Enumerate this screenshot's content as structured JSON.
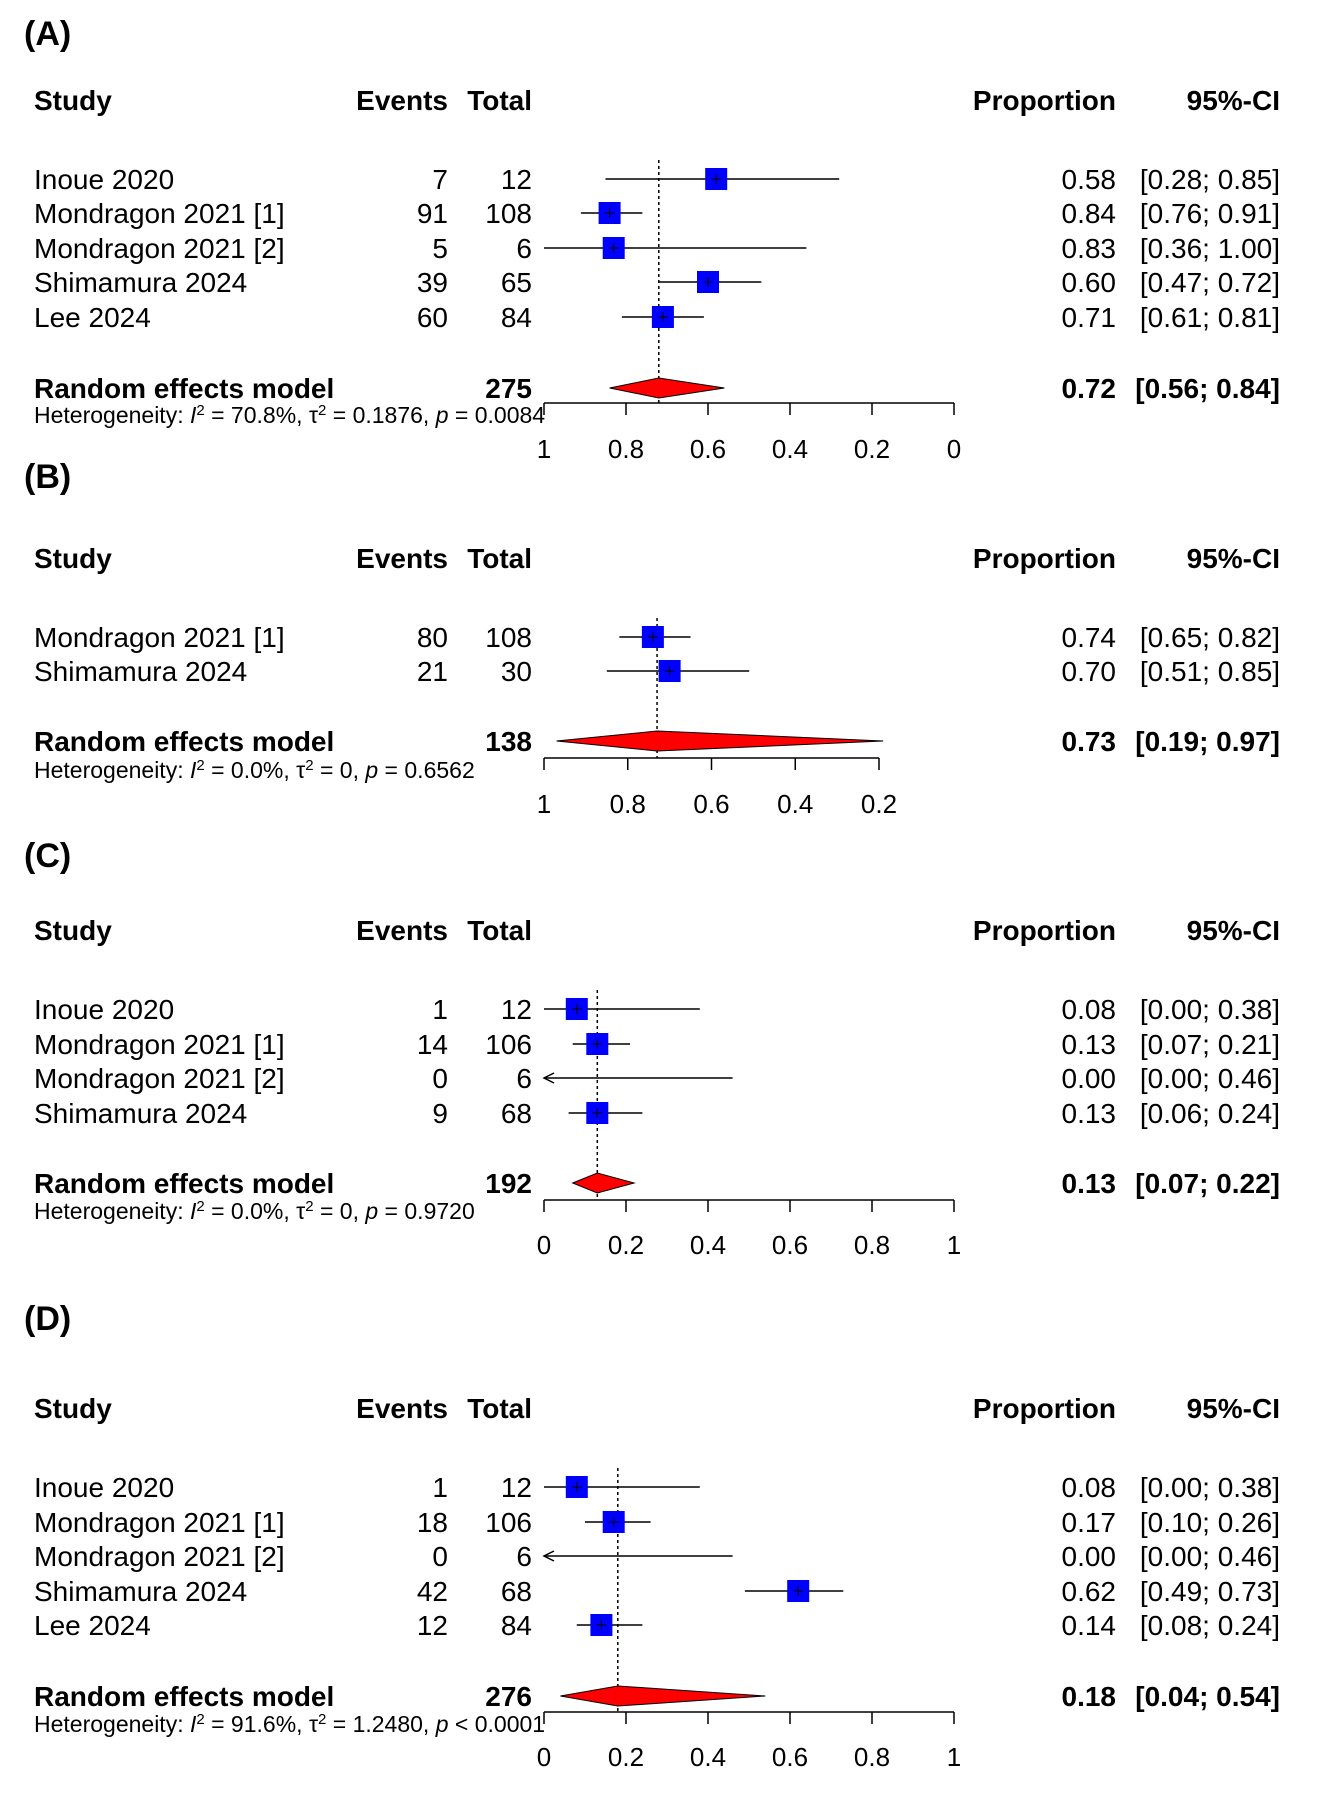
{
  "chart_data": [
    {
      "type": "forest",
      "panel_label": "(A)",
      "axis": {
        "from": 1,
        "to": 0,
        "ticks": [
          "1",
          "0.8",
          "0.6",
          "0.4",
          "0.2",
          "0"
        ]
      },
      "headers": {
        "study": "Study",
        "events": "Events",
        "total": "Total",
        "proportion": "Proportion",
        "ci": "95%-CI"
      },
      "studies": [
        {
          "study": "Inoue 2020",
          "events": "7",
          "total": "12",
          "proportion": "0.58",
          "ci": "[0.28; 0.85]",
          "p": 0.58,
          "lo": 0.28,
          "hi": 0.85
        },
        {
          "study": "Mondragon 2021 [1]",
          "events": "91",
          "total": "108",
          "proportion": "0.84",
          "ci": "[0.76; 0.91]",
          "p": 0.84,
          "lo": 0.76,
          "hi": 0.91
        },
        {
          "study": "Mondragon 2021 [2]",
          "events": "5",
          "total": "6",
          "proportion": "0.83",
          "ci": "[0.36; 1.00]",
          "p": 0.83,
          "lo": 0.36,
          "hi": 1.0
        },
        {
          "study": "Shimamura 2024",
          "events": "39",
          "total": "65",
          "proportion": "0.60",
          "ci": "[0.47; 0.72]",
          "p": 0.6,
          "lo": 0.47,
          "hi": 0.72
        },
        {
          "study": "Lee 2024",
          "events": "60",
          "total": "84",
          "proportion": "0.71",
          "ci": "[0.61; 0.81]",
          "p": 0.71,
          "lo": 0.61,
          "hi": 0.81
        }
      ],
      "pooled": {
        "label": "Random effects model",
        "total": "275",
        "proportion": "0.72",
        "ci": "[0.56; 0.84]",
        "p": 0.72,
        "lo": 0.56,
        "hi": 0.84
      },
      "heterogeneity": {
        "prefix": "Heterogeneity: ",
        "i2": "70.8%",
        "tau2": "0.1876",
        "p_op": "=",
        "p": "0.0084"
      }
    },
    {
      "type": "forest",
      "panel_label": "(B)",
      "axis": {
        "from": 1,
        "to": 0.2,
        "ticks": [
          "1",
          "0.8",
          "0.6",
          "0.4",
          "0.2"
        ]
      },
      "headers": {
        "study": "Study",
        "events": "Events",
        "total": "Total",
        "proportion": "Proportion",
        "ci": "95%-CI"
      },
      "studies": [
        {
          "study": "Mondragon 2021 [1]",
          "events": "80",
          "total": "108",
          "proportion": "0.74",
          "ci": "[0.65; 0.82]",
          "p": 0.74,
          "lo": 0.65,
          "hi": 0.82
        },
        {
          "study": "Shimamura 2024",
          "events": "21",
          "total": "30",
          "proportion": "0.70",
          "ci": "[0.51; 0.85]",
          "p": 0.7,
          "lo": 0.51,
          "hi": 0.85
        }
      ],
      "pooled": {
        "label": "Random effects model",
        "total": "138",
        "proportion": "0.73",
        "ci": "[0.19; 0.97]",
        "p": 0.73,
        "lo": 0.19,
        "hi": 0.97
      },
      "heterogeneity": {
        "prefix": "Heterogeneity: ",
        "i2": "0.0%",
        "tau2": "0",
        "p_op": "=",
        "p": "0.6562"
      }
    },
    {
      "type": "forest",
      "panel_label": "(C)",
      "axis": {
        "from": 0,
        "to": 1,
        "ticks": [
          "0",
          "0.2",
          "0.4",
          "0.6",
          "0.8",
          "1"
        ]
      },
      "headers": {
        "study": "Study",
        "events": "Events",
        "total": "Total",
        "proportion": "Proportion",
        "ci": "95%-CI"
      },
      "studies": [
        {
          "study": "Inoue 2020",
          "events": "1",
          "total": "12",
          "proportion": "0.08",
          "ci": "[0.00; 0.38]",
          "p": 0.08,
          "lo": 0.0,
          "hi": 0.38
        },
        {
          "study": "Mondragon 2021 [1]",
          "events": "14",
          "total": "106",
          "proportion": "0.13",
          "ci": "[0.07; 0.21]",
          "p": 0.13,
          "lo": 0.07,
          "hi": 0.21
        },
        {
          "study": "Mondragon 2021 [2]",
          "events": "0",
          "total": "6",
          "proportion": "0.00",
          "ci": "[0.00; 0.46]",
          "p": 0.0,
          "lo": 0.0,
          "hi": 0.46,
          "arrow": true
        },
        {
          "study": "Shimamura 2024",
          "events": "9",
          "total": "68",
          "proportion": "0.13",
          "ci": "[0.06; 0.24]",
          "p": 0.13,
          "lo": 0.06,
          "hi": 0.24
        }
      ],
      "pooled": {
        "label": "Random effects model",
        "total": "192",
        "proportion": "0.13",
        "ci": "[0.07; 0.22]",
        "p": 0.13,
        "lo": 0.07,
        "hi": 0.22
      },
      "heterogeneity": {
        "prefix": "Heterogeneity: ",
        "i2": "0.0%",
        "tau2": "0",
        "p_op": "=",
        "p": "0.9720"
      }
    },
    {
      "type": "forest",
      "panel_label": "(D)",
      "axis": {
        "from": 0,
        "to": 1,
        "ticks": [
          "0",
          "0.2",
          "0.4",
          "0.6",
          "0.8",
          "1"
        ]
      },
      "headers": {
        "study": "Study",
        "events": "Events",
        "total": "Total",
        "proportion": "Proportion",
        "ci": "95%-CI"
      },
      "studies": [
        {
          "study": "Inoue 2020",
          "events": "1",
          "total": "12",
          "proportion": "0.08",
          "ci": "[0.00; 0.38]",
          "p": 0.08,
          "lo": 0.0,
          "hi": 0.38
        },
        {
          "study": "Mondragon 2021 [1]",
          "events": "18",
          "total": "106",
          "proportion": "0.17",
          "ci": "[0.10; 0.26]",
          "p": 0.17,
          "lo": 0.1,
          "hi": 0.26
        },
        {
          "study": "Mondragon 2021 [2]",
          "events": "0",
          "total": "6",
          "proportion": "0.00",
          "ci": "[0.00; 0.46]",
          "p": 0.0,
          "lo": 0.0,
          "hi": 0.46,
          "arrow": true
        },
        {
          "study": "Shimamura 2024",
          "events": "42",
          "total": "68",
          "proportion": "0.62",
          "ci": "[0.49; 0.73]",
          "p": 0.62,
          "lo": 0.49,
          "hi": 0.73
        },
        {
          "study": "Lee 2024",
          "events": "12",
          "total": "84",
          "proportion": "0.14",
          "ci": "[0.08; 0.24]",
          "p": 0.14,
          "lo": 0.08,
          "hi": 0.24
        }
      ],
      "pooled": {
        "label": "Random effects model",
        "total": "276",
        "proportion": "0.18",
        "ci": "[0.04; 0.54]",
        "p": 0.18,
        "lo": 0.04,
        "hi": 0.54
      },
      "heterogeneity": {
        "prefix": "Heterogeneity: ",
        "i2": "91.6%",
        "tau2": "1.2480",
        "p_op": "<",
        "p": "0.0001"
      }
    }
  ],
  "colors": {
    "square": "#0000ff",
    "diamond": "#ff0000",
    "ink": "#000000"
  }
}
